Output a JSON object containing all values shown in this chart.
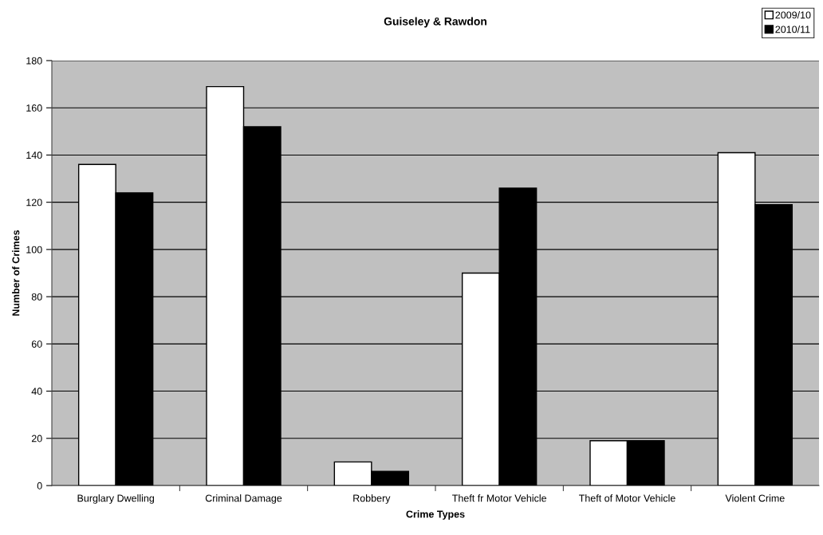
{
  "chart_data": {
    "type": "bar",
    "title": "Guiseley & Rawdon",
    "xlabel": "Crime Types",
    "ylabel": "Number of Crimes",
    "categories": [
      "Burglary Dwelling",
      "Criminal Damage",
      "Robbery",
      "Theft fr Motor Vehicle",
      "Theft of Motor Vehicle",
      "Violent Crime"
    ],
    "series": [
      {
        "name": "2009/10",
        "color": "#ffffff",
        "values": [
          136,
          169,
          10,
          90,
          19,
          141
        ]
      },
      {
        "name": "2010/11",
        "color": "#000000",
        "values": [
          124,
          152,
          6,
          126,
          19,
          119
        ]
      }
    ],
    "ylim": [
      0,
      180
    ],
    "yticks": [
      0,
      20,
      40,
      60,
      80,
      100,
      120,
      140,
      160,
      180
    ],
    "grid": "y",
    "legend": "top right"
  }
}
